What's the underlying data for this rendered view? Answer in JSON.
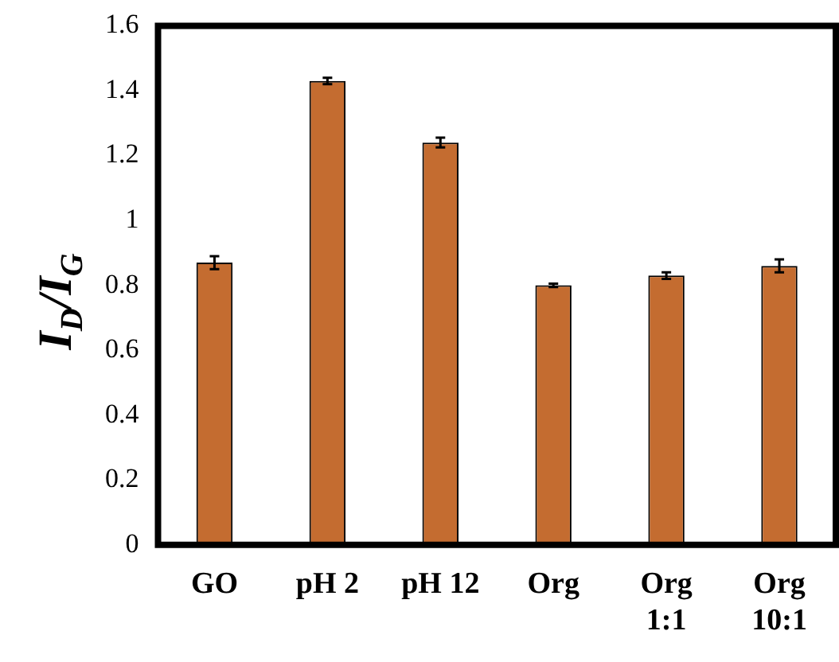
{
  "chart_data": {
    "type": "bar",
    "ylabel": "I$_{D}$/I$_{G}$",
    "categories": [
      "GO",
      "pH 2",
      "pH 12",
      "Org",
      "Org\n1:1",
      "Org\n10:1"
    ],
    "values": [
      0.87,
      1.43,
      1.24,
      0.8,
      0.83,
      0.86
    ],
    "errors": [
      0.02,
      0.01,
      0.015,
      0.005,
      0.01,
      0.02
    ],
    "color": "#c46c30",
    "ylim": [
      0,
      1.6
    ],
    "yticks": [
      0,
      0.2,
      0.4,
      0.6,
      0.8,
      1,
      1.2,
      1.4,
      1.6
    ],
    "grid": false,
    "legend": false
  }
}
